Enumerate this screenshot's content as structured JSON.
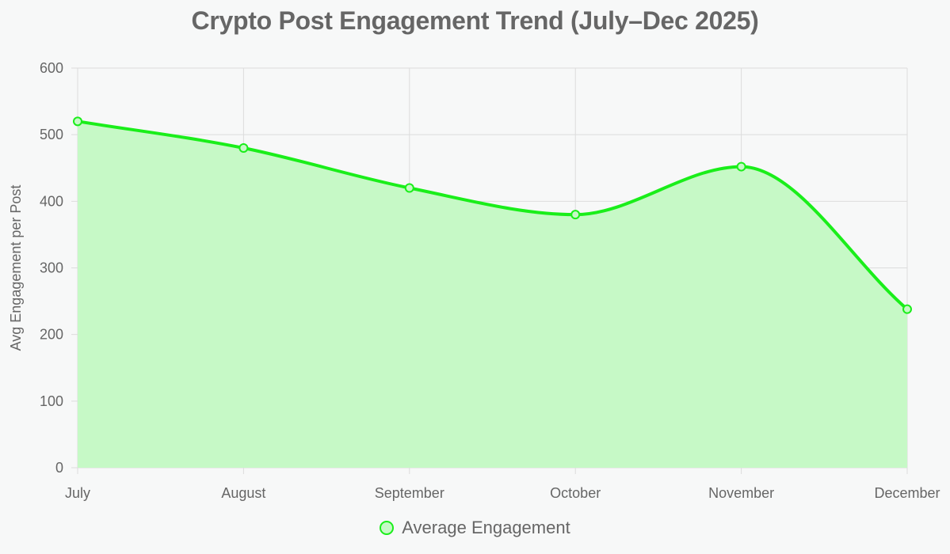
{
  "chart_data": {
    "type": "area",
    "title": "Crypto Post Engagement Trend (July–Dec 2025)",
    "xlabel": "",
    "ylabel": "Avg Engagement per Post",
    "categories": [
      "July",
      "August",
      "September",
      "October",
      "November",
      "December"
    ],
    "series": [
      {
        "name": "Average Engagement",
        "values": [
          520,
          480,
          420,
          380,
          452,
          238
        ]
      }
    ],
    "ylim": [
      0,
      600
    ],
    "yticks": [
      0,
      100,
      200,
      300,
      400,
      500,
      600
    ],
    "grid": true,
    "smooth": true,
    "legend_position": "bottom",
    "colors": {
      "line": "#1aee1a",
      "fill": "#c6f9c6",
      "grid": "#dcdcdc",
      "text": "#666666"
    }
  }
}
